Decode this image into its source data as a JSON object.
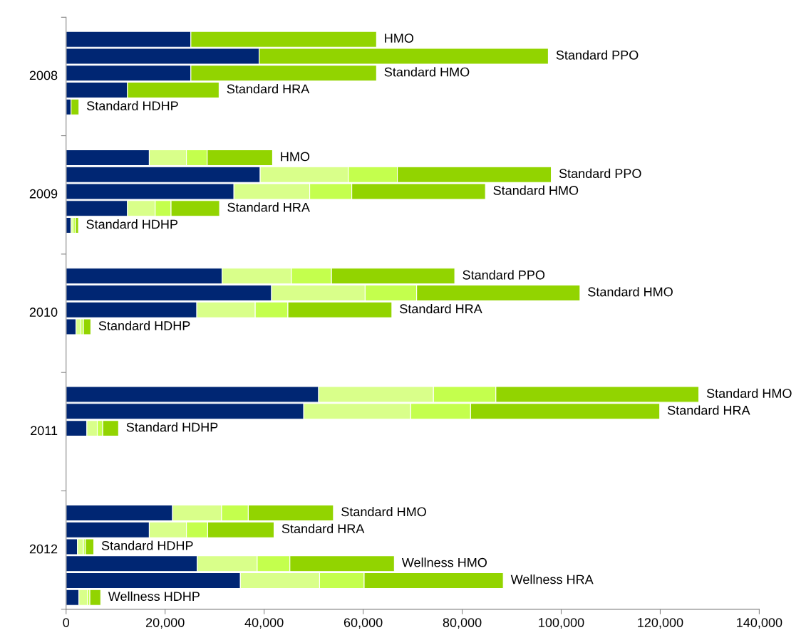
{
  "chart_data": {
    "type": "bar",
    "orientation": "horizontal",
    "stacked": true,
    "categories": [
      "HMO",
      "Standard PPO",
      "Standard HMO",
      "Standard HRA",
      "Standard HDHP",
      null,
      null,
      "HMO",
      "Standard PPO",
      "Standard HMO",
      "Standard HRA",
      "Standard HDHP",
      null,
      null,
      "Standard PPO",
      "Standard HMO",
      "Standard HRA",
      "Standard HDHP",
      null,
      null,
      null,
      "Standard HMO",
      "Standard HRA",
      "Standard HDHP",
      null,
      null,
      null,
      null,
      "Standard HMO",
      "Standard HRA",
      "Standard HDHP",
      "Wellness HMO",
      "Wellness HRA",
      "Wellness HDHP"
    ],
    "series": [
      {
        "color": "#002673",
        "values": [
          25200,
          39000,
          25200,
          12400,
          1000,
          null,
          null,
          16800,
          39200,
          33900,
          12400,
          1000,
          null,
          null,
          31500,
          41500,
          26400,
          2000,
          null,
          null,
          null,
          51000,
          48000,
          4200,
          null,
          null,
          null,
          null,
          21500,
          16800,
          2300,
          26500,
          35200,
          2600
        ]
      },
      {
        "color": "#d9ff8a",
        "values": [
          null,
          null,
          null,
          null,
          null,
          null,
          null,
          7500,
          17800,
          15300,
          5600,
          400,
          null,
          null,
          14000,
          18900,
          11800,
          1000,
          null,
          null,
          null,
          23200,
          21600,
          2100,
          null,
          null,
          null,
          null,
          9900,
          7500,
          1200,
          12100,
          16000,
          1700
        ]
      },
      {
        "color": "#c4ff4d",
        "values": [
          null,
          null,
          null,
          null,
          null,
          null,
          null,
          4200,
          9900,
          8500,
          3200,
          500,
          null,
          null,
          8100,
          10400,
          6600,
          500,
          null,
          null,
          null,
          12600,
          12100,
          1100,
          null,
          null,
          null,
          null,
          5400,
          4300,
          400,
          6600,
          9000,
          500
        ]
      },
      {
        "color": "#92d400",
        "values": [
          37500,
          58400,
          37500,
          18500,
          1600,
          null,
          null,
          13200,
          31100,
          27000,
          9800,
          600,
          null,
          null,
          24900,
          33000,
          21000,
          1500,
          null,
          null,
          null,
          41000,
          38200,
          3200,
          null,
          null,
          null,
          null,
          17200,
          13400,
          1700,
          21100,
          28100,
          2200
        ]
      }
    ],
    "annotations": [
      "2008",
      "2009",
      "2010",
      "2011",
      "2012"
    ],
    "xlim": [
      0,
      140000
    ],
    "xticks": [
      0,
      {
        "value": 20000,
        "label": "20,000"
      },
      {
        "value": 40000,
        "label": "40,000"
      },
      {
        "value": 60000,
        "label": "60,000"
      },
      {
        "value": 80000,
        "label": "80,000"
      },
      {
        "value": 100000,
        "label": "100,000"
      },
      {
        "value": 120000,
        "label": "120,000"
      },
      {
        "value": 140000,
        "label": "140,000"
      }
    ],
    "grid": false,
    "legend": false
  }
}
